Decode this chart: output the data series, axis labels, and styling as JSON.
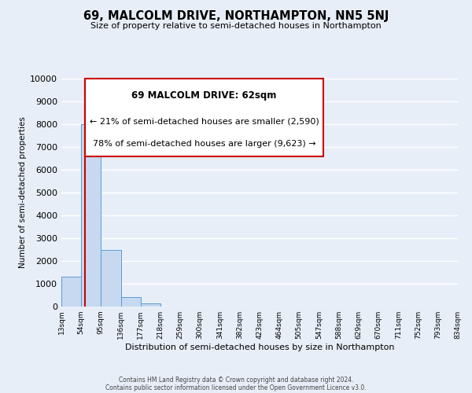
{
  "title": "69, MALCOLM DRIVE, NORTHAMPTON, NN5 5NJ",
  "subtitle": "Size of property relative to semi-detached houses in Northampton",
  "xlabel": "Distribution of semi-detached houses by size in Northampton",
  "ylabel": "Number of semi-detached properties",
  "bin_labels": [
    "13sqm",
    "54sqm",
    "95sqm",
    "136sqm",
    "177sqm",
    "218sqm",
    "259sqm",
    "300sqm",
    "341sqm",
    "382sqm",
    "423sqm",
    "464sqm",
    "505sqm",
    "547sqm",
    "588sqm",
    "629sqm",
    "670sqm",
    "711sqm",
    "752sqm",
    "793sqm",
    "834sqm"
  ],
  "bar_heights": [
    1300,
    8000,
    2500,
    400,
    150,
    0,
    0,
    0,
    0,
    0,
    0,
    0,
    0,
    0,
    0,
    0,
    0,
    0,
    0,
    0
  ],
  "bar_color": "#c6d9f0",
  "bar_edge_color": "#5b9bd5",
  "annotation_box_edge_color": "#cc0000",
  "annotation_title": "69 MALCOLM DRIVE: 62sqm",
  "annotation_line1": "← 21% of semi-detached houses are smaller (2,590)",
  "annotation_line2": "78% of semi-detached houses are larger (9,623) →",
  "property_line_x": 62,
  "ylim": [
    0,
    10000
  ],
  "yticks": [
    0,
    1000,
    2000,
    3000,
    4000,
    5000,
    6000,
    7000,
    8000,
    9000,
    10000
  ],
  "footer1": "Contains HM Land Registry data © Crown copyright and database right 2024.",
  "footer2": "Contains public sector information licensed under the Open Government Licence v3.0.",
  "background_color": "#e8eef8",
  "plot_background_color": "#e8eef8",
  "grid_color": "#ffffff",
  "bin_width": 41,
  "red_line_color": "#cc0000"
}
